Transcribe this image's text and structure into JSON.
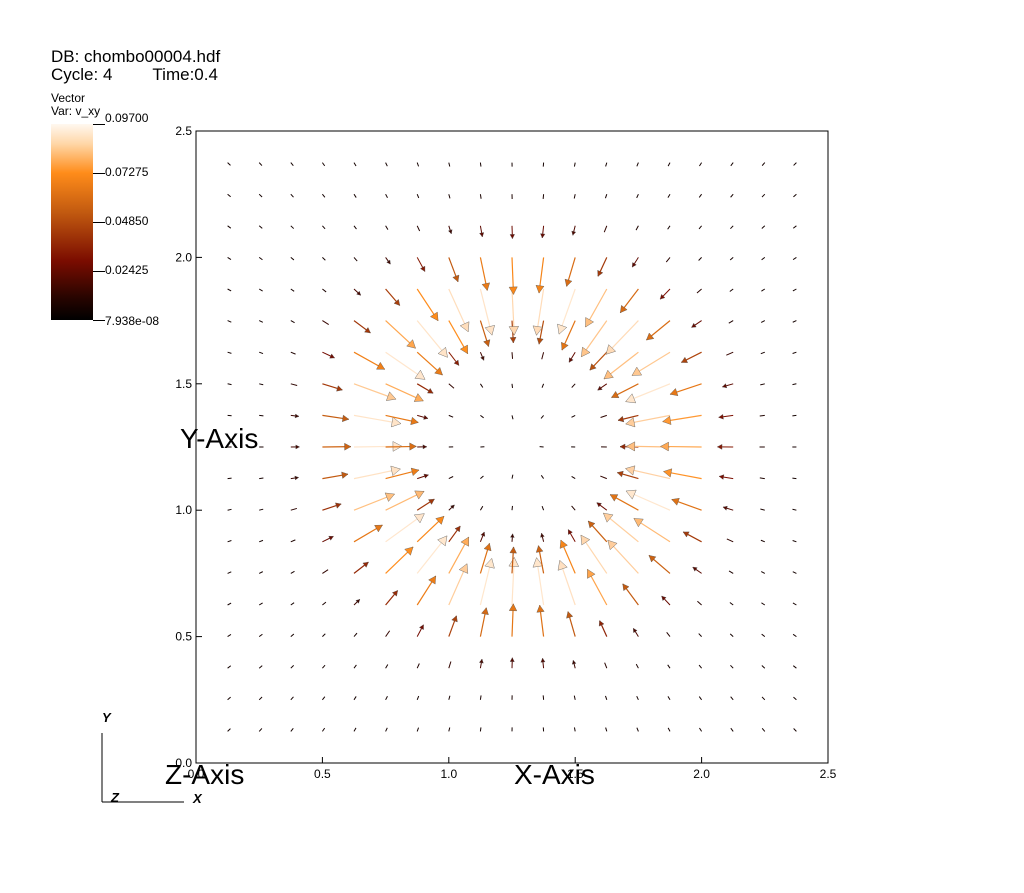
{
  "header": {
    "db": "DB: chombo00004.hdf",
    "cycle": "Cycle: 4",
    "time": "Time:0.4"
  },
  "legend": {
    "plot_type": "Vector",
    "variable": "Var: v_xy",
    "max": "0.09700",
    "tick1": "0.07275",
    "tick2": "0.04850",
    "tick3": "0.02425",
    "min": "7.938e-08",
    "colors": [
      "#000000",
      "#7a0c00",
      "#c25a10",
      "#ff8c1a",
      "#fff8f0"
    ]
  },
  "chart_data": {
    "type": "vector",
    "xlabel": "X-Axis",
    "ylabel": "Y-Axis",
    "zlabel": "Z-Axis",
    "xlim": [
      0.0,
      2.5
    ],
    "ylim": [
      0.0,
      2.5
    ],
    "x_ticks": [
      "0.0",
      "0.5",
      "1.0",
      "1.5",
      "2.0",
      "2.5"
    ],
    "y_ticks": [
      "0.0",
      "0.5",
      "1.0",
      "1.5",
      "2.0",
      "2.5"
    ],
    "center": [
      1.28,
      1.26
    ],
    "peak_radius": 0.65,
    "max_magnitude": 0.097,
    "direction": "inward",
    "triad": {
      "y": "Y",
      "z": "Z",
      "x": "X"
    }
  }
}
